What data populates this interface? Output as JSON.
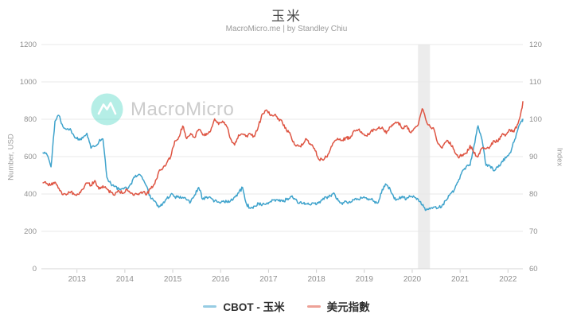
{
  "header": {
    "title": "玉米",
    "subtitle": "MacroMicro.me | by Standley Chiu"
  },
  "watermark": {
    "brand": "MacroMicro"
  },
  "legend": [
    {
      "label": "CBOT - 玉米",
      "color": "#3fa3cc"
    },
    {
      "label": "美元指數",
      "color": "#de5442"
    }
  ],
  "chart_data": {
    "type": "line",
    "title": "玉米",
    "y_left_label": "Number, USD",
    "y_right_label": "Index",
    "ylim_left": [
      0,
      1200
    ],
    "ylim_right": [
      60,
      120
    ],
    "y_left_ticks": [
      0,
      200,
      400,
      600,
      800,
      1000,
      1200
    ],
    "y_right_ticks": [
      60,
      70,
      80,
      90,
      100,
      110,
      120
    ],
    "x_ticks": [
      2013,
      2014,
      2015,
      2016,
      2017,
      2018,
      2019,
      2020,
      2021,
      2022
    ],
    "xlim": [
      2012.28,
      2022.38
    ],
    "grid": "horizontal",
    "legend_position": "bottom",
    "recession_band": {
      "from": 2020.12,
      "to": 2020.37,
      "color": "#ececec"
    },
    "x_monthly_start": "2012-04",
    "series": [
      {
        "name": "CBOT - 玉米",
        "axis": "left",
        "color": "#3fa3cc",
        "unit": "USD cents/bushel",
        "values": [
          620,
          610,
          545,
          790,
          820,
          760,
          748,
          742,
          700,
          695,
          700,
          725,
          645,
          655,
          680,
          695,
          490,
          455,
          440,
          425,
          430,
          428,
          455,
          490,
          505,
          478,
          440,
          375,
          363,
          328,
          348,
          375,
          398,
          385,
          383,
          383,
          368,
          358,
          395,
          435,
          372,
          385,
          380,
          363,
          358,
          360,
          358,
          365,
          385,
          405,
          435,
          345,
          323,
          335,
          350,
          345,
          350,
          360,
          370,
          363,
          360,
          370,
          386,
          376,
          350,
          350,
          347,
          341,
          350,
          352,
          368,
          383,
          390,
          402,
          363,
          344,
          360,
          354,
          368,
          372,
          378,
          380,
          372,
          361,
          354,
          425,
          450,
          424,
          374,
          371,
          388,
          371,
          385,
          385,
          372,
          340,
          314,
          320,
          330,
          325,
          340,
          365,
          400,
          420,
          465,
          520,
          545,
          553,
          660,
          765,
          690,
          553,
          550,
          524,
          543,
          575,
          593,
          620,
          678,
          748,
          790,
          800
        ]
      },
      {
        "name": "美元指數",
        "axis": "right",
        "color": "#de5442",
        "unit": "index",
        "values": [
          83.0,
          82.8,
          82.4,
          83.2,
          81.5,
          79.8,
          80.0,
          80.6,
          79.8,
          79.9,
          81.3,
          82.9,
          82.3,
          83.6,
          81.3,
          82.2,
          81.4,
          80.4,
          79.7,
          80.9,
          80.2,
          81.2,
          80.2,
          80.0,
          79.8,
          80.4,
          80.0,
          81.4,
          82.7,
          86.0,
          86.8,
          88.3,
          90.0,
          94.2,
          95.2,
          98.2,
          94.8,
          96.2,
          95.1,
          97.3,
          95.8,
          96.2,
          96.9,
          100.1,
          98.6,
          99.5,
          98.1,
          94.8,
          93.1,
          95.8,
          96.0,
          95.6,
          96.0,
          95.4,
          98.3,
          101.5,
          102.5,
          101.0,
          101.2,
          100.2,
          99.0,
          97.0,
          95.9,
          93.2,
          92.8,
          93.1,
          94.7,
          93.4,
          92.2,
          89.4,
          89.2,
          89.9,
          92.0,
          94.1,
          94.6,
          94.4,
          95.0,
          95.0,
          97.0,
          97.2,
          96.1,
          95.6,
          96.5,
          97.3,
          97.6,
          97.9,
          96.2,
          98.0,
          98.8,
          99.2,
          97.5,
          98.3,
          96.5,
          97.6,
          98.5,
          102.8,
          99.6,
          98.0,
          97.2,
          93.4,
          92.3,
          94.0,
          93.9,
          91.8,
          89.9,
          90.5,
          90.9,
          93.0,
          90.9,
          90.0,
          92.3,
          92.1,
          92.7,
          94.3,
          94.0,
          96.0,
          95.9,
          97.2,
          96.6,
          98.8,
          103.0,
          104.7
        ]
      }
    ]
  }
}
